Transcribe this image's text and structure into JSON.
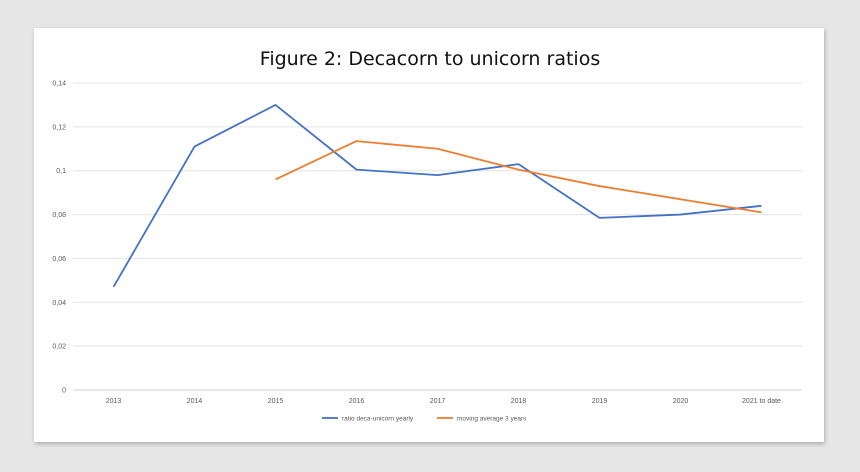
{
  "chart_data": {
    "type": "line",
    "title": "Figure 2:  Decacorn to unicorn ratios",
    "xlabel": "",
    "ylabel": "",
    "categories": [
      "2013",
      "2014",
      "2015",
      "2016",
      "2017",
      "2018",
      "2019",
      "2020",
      "2021 to date"
    ],
    "y_ticks": [
      "0",
      "0,02",
      "0,04",
      "0,06",
      "0,08",
      "0,1",
      "0,12",
      "0,14"
    ],
    "ylim": [
      0,
      0.14
    ],
    "grid": true,
    "legend_position": "bottom",
    "series": [
      {
        "name": "ratio deca-unicorn yearly",
        "color": "#4472c4",
        "values": [
          0.047,
          0.111,
          0.13,
          0.1005,
          0.098,
          0.103,
          0.0785,
          0.08,
          0.084
        ]
      },
      {
        "name": "moving average 3 years",
        "color": "#ed7d31",
        "values": [
          null,
          null,
          0.096,
          0.1135,
          0.11,
          0.1005,
          0.093,
          0.087,
          0.081
        ]
      }
    ]
  }
}
